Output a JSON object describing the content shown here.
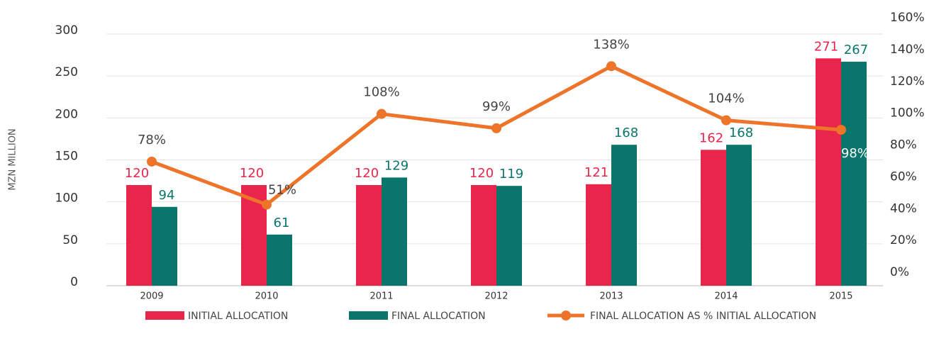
{
  "chart_data": {
    "type": "bar",
    "y_label": "MZN MILLION",
    "categories": [
      "2009",
      "2010",
      "2011",
      "2012",
      "2013",
      "2014",
      "2015"
    ],
    "series": [
      {
        "name": "INITIAL ALLOCATION",
        "type": "bar",
        "color": "#e8254a",
        "values": [
          120,
          120,
          120,
          120,
          121,
          162,
          271
        ]
      },
      {
        "name": "FINAL ALLOCATION",
        "type": "bar",
        "color": "#0a756a",
        "values": [
          94,
          61,
          129,
          119,
          168,
          168,
          267
        ]
      },
      {
        "name": "FINAL ALLOCATION AS % INITIAL ALLOCATION",
        "type": "line",
        "axis": "y2",
        "color": "#ee7429",
        "values": [
          78,
          51,
          108,
          99,
          138,
          104,
          98
        ],
        "value_labels": [
          "78%",
          "51%",
          "108%",
          "99%",
          "138%",
          "104%",
          "98%"
        ]
      }
    ],
    "ylim": [
      0,
      300
    ],
    "yticks": [
      0,
      50,
      100,
      150,
      200,
      250,
      300
    ],
    "y2lim": [
      0,
      160
    ],
    "y2ticks": [
      {
        "value": 0,
        "label": "0%"
      },
      {
        "value": 20,
        "label": "20%"
      },
      {
        "value": 40,
        "label": "40%"
      },
      {
        "value": 60,
        "label": "60%"
      },
      {
        "value": 80,
        "label": "80%"
      },
      {
        "value": 100,
        "label": "100%"
      },
      {
        "value": 120,
        "label": "120%"
      },
      {
        "value": 140,
        "label": "140%"
      },
      {
        "value": 160,
        "label": "160%"
      }
    ],
    "grid": true,
    "legend": "bottom"
  }
}
